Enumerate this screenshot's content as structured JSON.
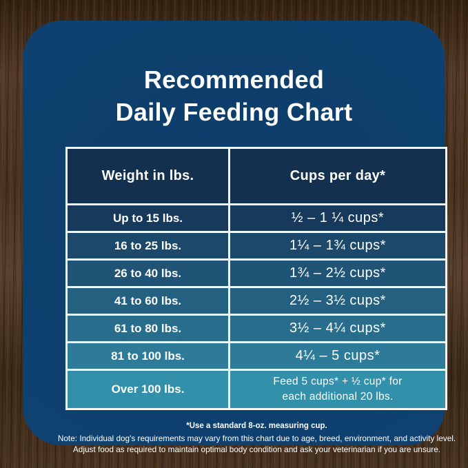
{
  "title": {
    "line1": "Recommended",
    "line2": "Daily Feeding Chart"
  },
  "table": {
    "col_headers": [
      "Weight in lbs.",
      "Cups per day*"
    ],
    "rows": [
      {
        "weight": "Up to 15 lbs.",
        "cups": "½ – 1 ¼ cups*"
      },
      {
        "weight": "16 to 25 lbs.",
        "cups": "1¼ – 1¾ cups*"
      },
      {
        "weight": "26 to 40 lbs.",
        "cups": "1¾ – 2½ cups*"
      },
      {
        "weight": "41 to 60 lbs.",
        "cups": "2½ – 3½ cups*"
      },
      {
        "weight": "61 to 80 lbs.",
        "cups": "3½ – 4¼ cups*"
      },
      {
        "weight": "81 to 100 lbs.",
        "cups": "4¼ – 5 cups*"
      },
      {
        "weight": "Over 100 lbs.",
        "cups_line1": "Feed 5 cups* + ½ cup* for",
        "cups_line2": "each additional 20 lbs."
      }
    ]
  },
  "footnotes": {
    "measuring_cup": "*Use a standard 8-oz. measuring cup.",
    "note_line1": "Note: Individual dog's requirements may vary from this chart due to age, breed, environment, and activity level.",
    "note_line2": "Adjust food as required to maintain optimal body condition and ask your veterinarian if you are unsure."
  },
  "colors": {
    "card_bg": "#0F4373",
    "table_border": "#F5F5F2",
    "header_cell_bg": "#14304F",
    "row_bgs": [
      "#17395C",
      "#1C4869",
      "#205476",
      "#246080",
      "#286D8C",
      "#2D7B98",
      "#3290AB"
    ],
    "text": "#FFFFFF",
    "wood_base": "#46311F"
  },
  "chart_data": {
    "type": "table",
    "title": "Recommended Daily Feeding Chart",
    "columns": [
      "Weight in lbs.",
      "Cups per day*"
    ],
    "rows": [
      [
        "Up to 15 lbs.",
        "½ – 1 ¼ cups*"
      ],
      [
        "16 to 25 lbs.",
        "1¼ – 1¾ cups*"
      ],
      [
        "26 to 40 lbs.",
        "1¾ – 2½ cups*"
      ],
      [
        "41 to 60 lbs.",
        "2½ – 3½ cups*"
      ],
      [
        "61 to 80 lbs.",
        "3½ – 4¼ cups*"
      ],
      [
        "81 to 100 lbs.",
        "4¼ – 5 cups*"
      ],
      [
        "Over 100 lbs.",
        "Feed 5 cups* + ½ cup* for each additional 20 lbs."
      ]
    ],
    "footnotes": [
      "*Use a standard 8-oz. measuring cup.",
      "Note: Individual dog's requirements may vary from this chart due to age, breed, environment, and activity level.",
      "Adjust food as required to maintain optimal body condition and ask your veterinarian if you are unsure."
    ]
  }
}
